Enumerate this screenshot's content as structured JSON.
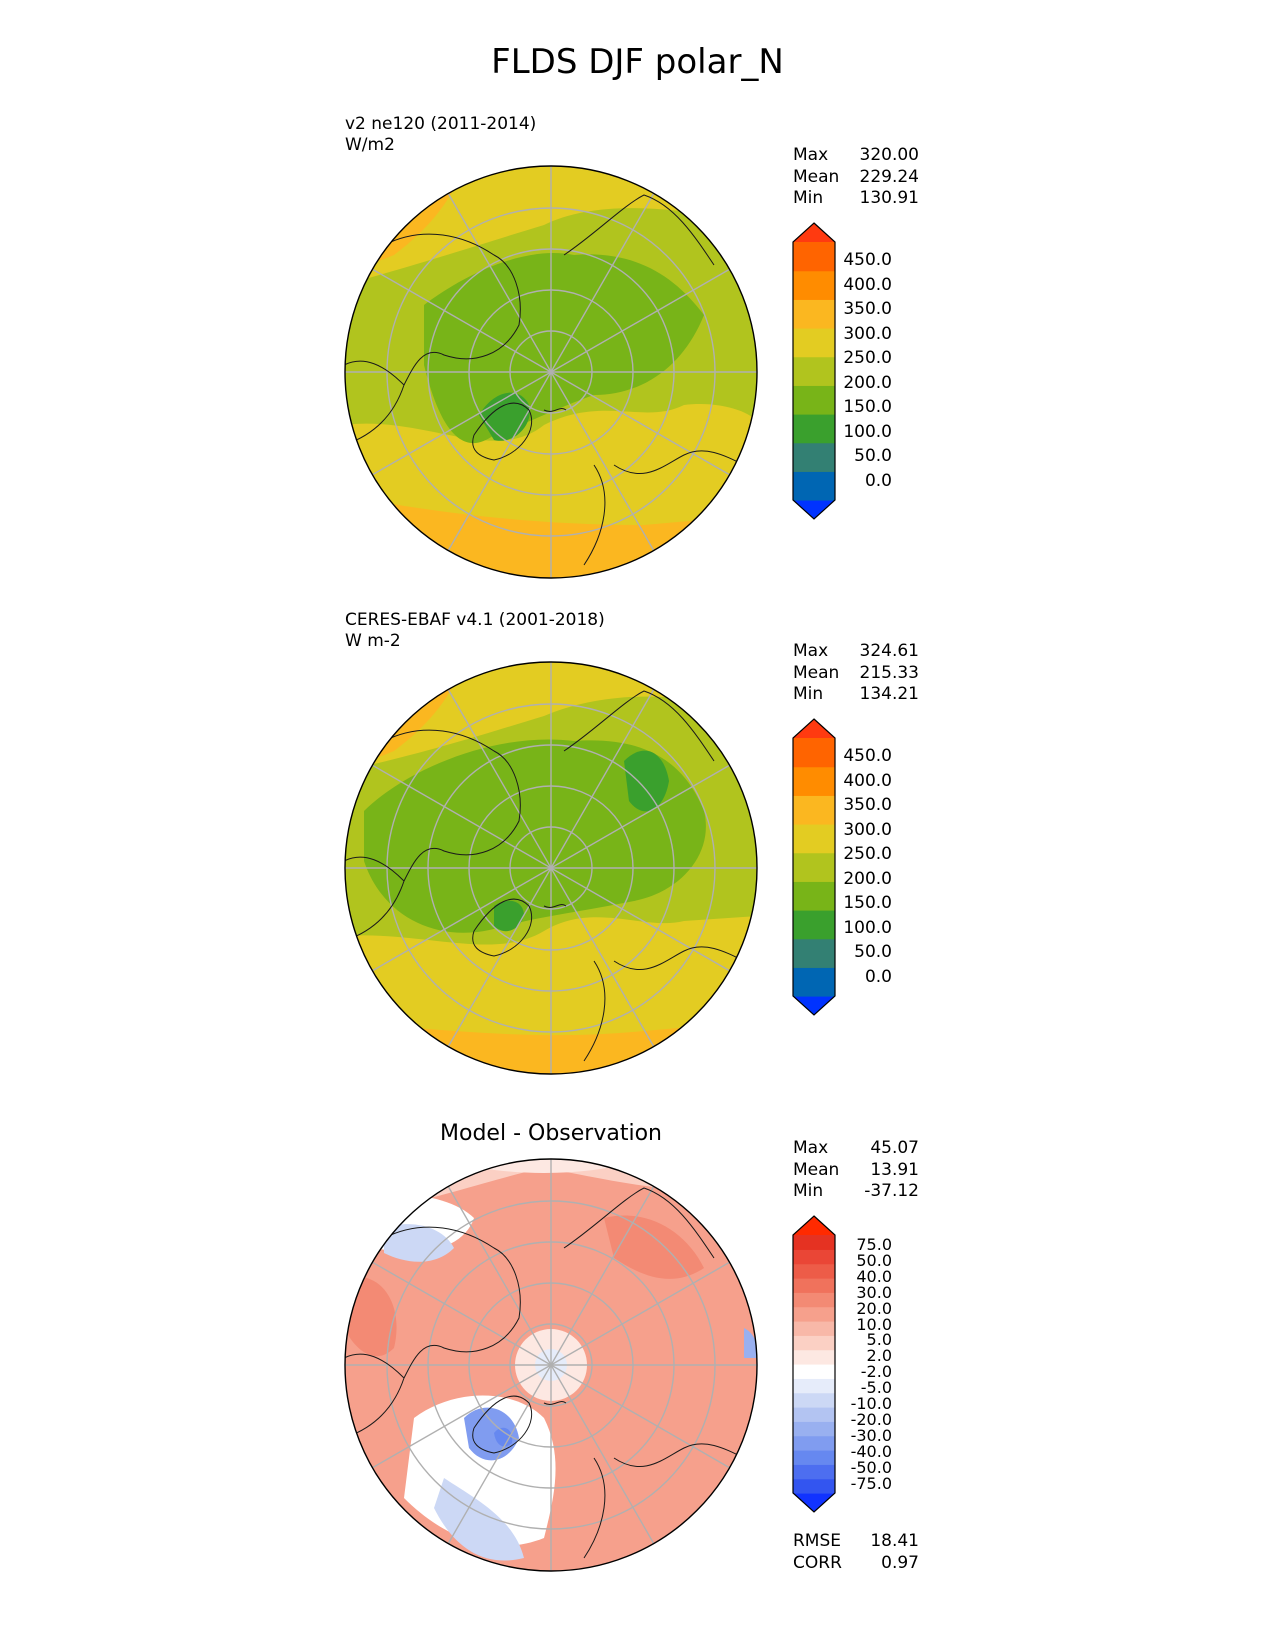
{
  "figure_title": "FLDS DJF polar_N",
  "colors": {
    "main_levels": [
      "#0033ff",
      "#0066b3",
      "#338073",
      "#3aa02d",
      "#78b418",
      "#b1c41e",
      "#e3cc22",
      "#fbb720",
      "#ff8c00",
      "#ff6400",
      "#ff3a10"
    ],
    "diff_levels": [
      "#1133ff",
      "#3355f0",
      "#4d6ef0",
      "#6688f0",
      "#809cf0",
      "#99b0f0",
      "#b3c4f2",
      "#ccd8f5",
      "#e6ecfa",
      "#ffffff",
      "#fde8e2",
      "#fbd0c4",
      "#f8b8a8",
      "#f6a08c",
      "#f38a74",
      "#f0725c",
      "#ed5c48",
      "#ea4636",
      "#e53222",
      "#ff2a00"
    ]
  },
  "panels": [
    {
      "id": "test",
      "title_line1": "v2 ne120 (2011-2014)",
      "title_line2": "W/m2",
      "stats": {
        "max_label": "Max",
        "max": "320.00",
        "mean_label": "Mean",
        "mean": "229.24",
        "min_label": "Min",
        "min": "130.91"
      },
      "colorbar_ticks": [
        "450.0",
        "400.0",
        "350.0",
        "300.0",
        "250.0",
        "200.0",
        "150.0",
        "100.0",
        "50.0",
        "0.0"
      ]
    },
    {
      "id": "reference",
      "title_line1": "CERES-EBAF v4.1 (2001-2018)",
      "title_line2": "W m-2",
      "stats": {
        "max_label": "Max",
        "max": "324.61",
        "mean_label": "Mean",
        "mean": "215.33",
        "min_label": "Min",
        "min": "134.21"
      },
      "colorbar_ticks": [
        "450.0",
        "400.0",
        "350.0",
        "300.0",
        "250.0",
        "200.0",
        "150.0",
        "100.0",
        "50.0",
        "0.0"
      ]
    },
    {
      "id": "difference",
      "title_center": "Model - Observation",
      "stats": {
        "max_label": "Max",
        "max": "45.07",
        "mean_label": "Mean",
        "mean": "13.91",
        "min_label": "Min",
        "min": "-37.12"
      },
      "colorbar_ticks": [
        "75.0",
        "50.0",
        "40.0",
        "30.0",
        "20.0",
        "10.0",
        "5.0",
        "2.0",
        "-2.0",
        "-5.0",
        "-10.0",
        "-20.0",
        "-30.0",
        "-40.0",
        "-50.0",
        "-75.0"
      ],
      "metrics": {
        "rmse_label": "RMSE",
        "rmse": "18.41",
        "corr_label": "CORR",
        "corr": "0.97"
      }
    }
  ],
  "chart_data": [
    {
      "type": "heatmap",
      "projection": "north polar stereographic",
      "title": "v2 ne120 (2011-2014)",
      "units": "W/m2",
      "max": 320.0,
      "mean": 229.24,
      "min": 130.91,
      "levels": [
        0,
        50,
        100,
        150,
        200,
        250,
        300,
        350,
        400,
        450
      ],
      "colorbar_extend": "both",
      "pattern": "~160-200 over central Arctic/Greenland/Canada, 200-250 over Siberia and Europe, 250-320 over the Atlantic and Pacific margins"
    },
    {
      "type": "heatmap",
      "projection": "north polar stereographic",
      "title": "CERES-EBAF v4.1 (2001-2018)",
      "units": "W m-2",
      "max": 324.61,
      "mean": 215.33,
      "min": 134.21,
      "levels": [
        0,
        50,
        100,
        150,
        200,
        250,
        300,
        350,
        400,
        450
      ],
      "colorbar_extend": "both",
      "pattern": "~150-200 over central Arctic, Canada, Greenland and eastern Siberia, 200-300 over continents and oceans at lower latitudes"
    },
    {
      "type": "heatmap",
      "projection": "north polar stereographic",
      "title": "Model - Observation",
      "max": 45.07,
      "mean": 13.91,
      "min": -37.12,
      "rmse": 18.41,
      "corr": 0.97,
      "levels": [
        -75,
        -50,
        -40,
        -30,
        -20,
        -10,
        -5,
        -2,
        2,
        5,
        10,
        20,
        30,
        40,
        50,
        75
      ],
      "colorbar_extend": "both",
      "pattern": "mostly positive (10-40) everywhere, negative (-10 to -30) over Greenland and parts of the North Atlantic, near zero near the pole"
    }
  ]
}
